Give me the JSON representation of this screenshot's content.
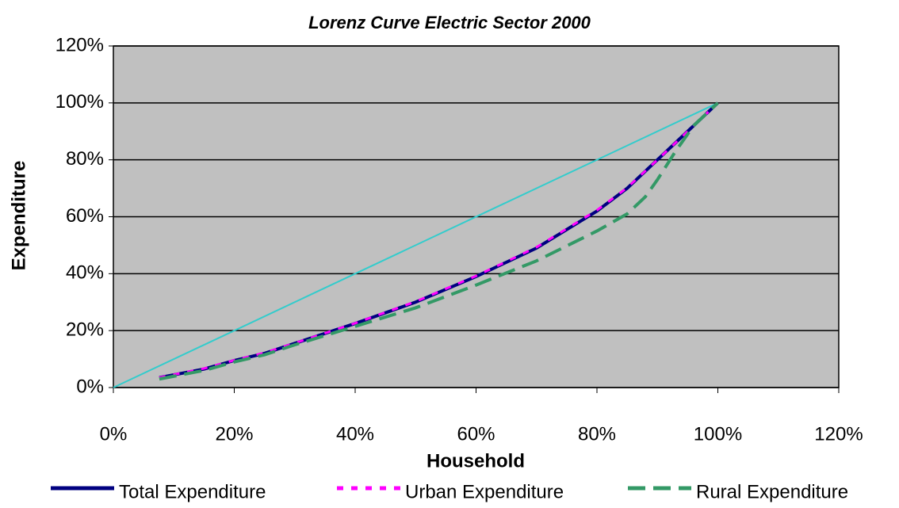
{
  "chart_data": {
    "type": "line",
    "title": "Lorenz Curve Electric Sector 2000",
    "xlabel": "Household",
    "ylabel": "Expenditure",
    "xlim": [
      0,
      120
    ],
    "ylim": [
      0,
      120
    ],
    "xticks": [
      {
        "value": 0,
        "label": "0%"
      },
      {
        "value": 20,
        "label": "20%"
      },
      {
        "value": 40,
        "label": "40%"
      },
      {
        "value": 60,
        "label": "60%"
      },
      {
        "value": 80,
        "label": "80%"
      },
      {
        "value": 100,
        "label": "100%"
      },
      {
        "value": 120,
        "label": "120%"
      }
    ],
    "yticks": [
      {
        "value": 0,
        "label": "0%"
      },
      {
        "value": 20,
        "label": "20%"
      },
      {
        "value": 40,
        "label": "40%"
      },
      {
        "value": 60,
        "label": "60%"
      },
      {
        "value": 80,
        "label": "80%"
      },
      {
        "value": 100,
        "label": "100%"
      },
      {
        "value": 120,
        "label": "120%"
      }
    ],
    "grid": true,
    "legend": "bottom",
    "equality_line": {
      "color": "#33cccc",
      "x": [
        0,
        100
      ],
      "values": [
        0,
        100
      ]
    },
    "series": [
      {
        "name": "Total Expenditure",
        "color": "#000080",
        "dash": "none",
        "x": [
          7.6,
          15,
          20,
          25,
          30,
          40,
          50,
          60,
          70,
          80,
          85,
          90,
          95,
          100
        ],
        "values": [
          3.5,
          6.5,
          9.5,
          12,
          15.5,
          22.5,
          30,
          39,
          49,
          62,
          70,
          80,
          90,
          100
        ]
      },
      {
        "name": "Urban Expenditure",
        "color": "#ff00ff",
        "dash": "8 10",
        "x": [
          7.6,
          15,
          20,
          25,
          30,
          40,
          50,
          60,
          70,
          80,
          85,
          90,
          95,
          100
        ],
        "values": [
          3.5,
          6.7,
          9.6,
          12.2,
          15.6,
          22.6,
          30.2,
          39.2,
          49.3,
          62.3,
          70.2,
          80,
          90,
          100
        ]
      },
      {
        "name": "Rural Expenditure",
        "color": "#339966",
        "dash": "22 10",
        "x": [
          7.6,
          15,
          20,
          25,
          30,
          40,
          50,
          60,
          70,
          80,
          85,
          88,
          90,
          93,
          96,
          100
        ],
        "values": [
          3,
          6,
          9,
          11.5,
          15,
          21.5,
          28,
          36,
          44.5,
          55,
          61,
          67,
          73,
          83,
          92,
          100
        ]
      }
    ]
  }
}
